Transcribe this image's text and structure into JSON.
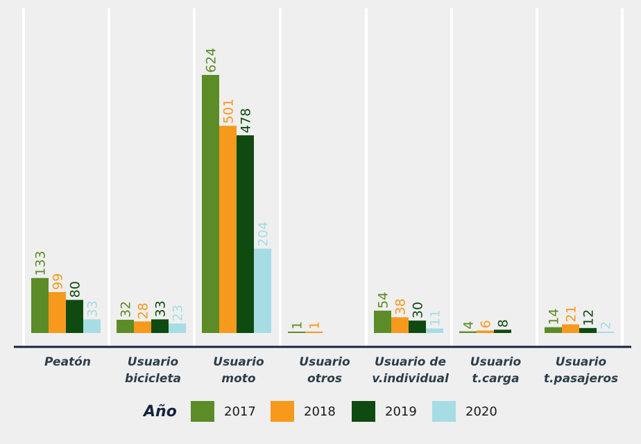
{
  "chart_data": {
    "type": "bar",
    "title": "",
    "categories": [
      [
        "Peatón"
      ],
      [
        "Usuario",
        "bicicleta"
      ],
      [
        "Usuario",
        "moto"
      ],
      [
        "Usuario",
        "otros"
      ],
      [
        "Usuario de",
        "v.individual"
      ],
      [
        "Usuario",
        "t.carga"
      ],
      [
        "Usuario",
        "t.pasajeros"
      ]
    ],
    "series": [
      {
        "name": "2017",
        "color": "#5b8c27",
        "values": [
          133,
          32,
          624,
          1,
          54,
          4,
          14
        ]
      },
      {
        "name": "2018",
        "color": "#f7991c",
        "values": [
          99,
          28,
          501,
          1,
          38,
          6,
          21
        ]
      },
      {
        "name": "2019",
        "color": "#0f4a10",
        "values": [
          80,
          33,
          478,
          null,
          30,
          8,
          12
        ]
      },
      {
        "name": "2020",
        "color": "#a6dde4",
        "values": [
          33,
          23,
          204,
          null,
          11,
          null,
          2
        ]
      }
    ],
    "legend": {
      "title": "Año",
      "position": "bottom"
    },
    "ylim": [
      0,
      624
    ],
    "grid": true
  }
}
